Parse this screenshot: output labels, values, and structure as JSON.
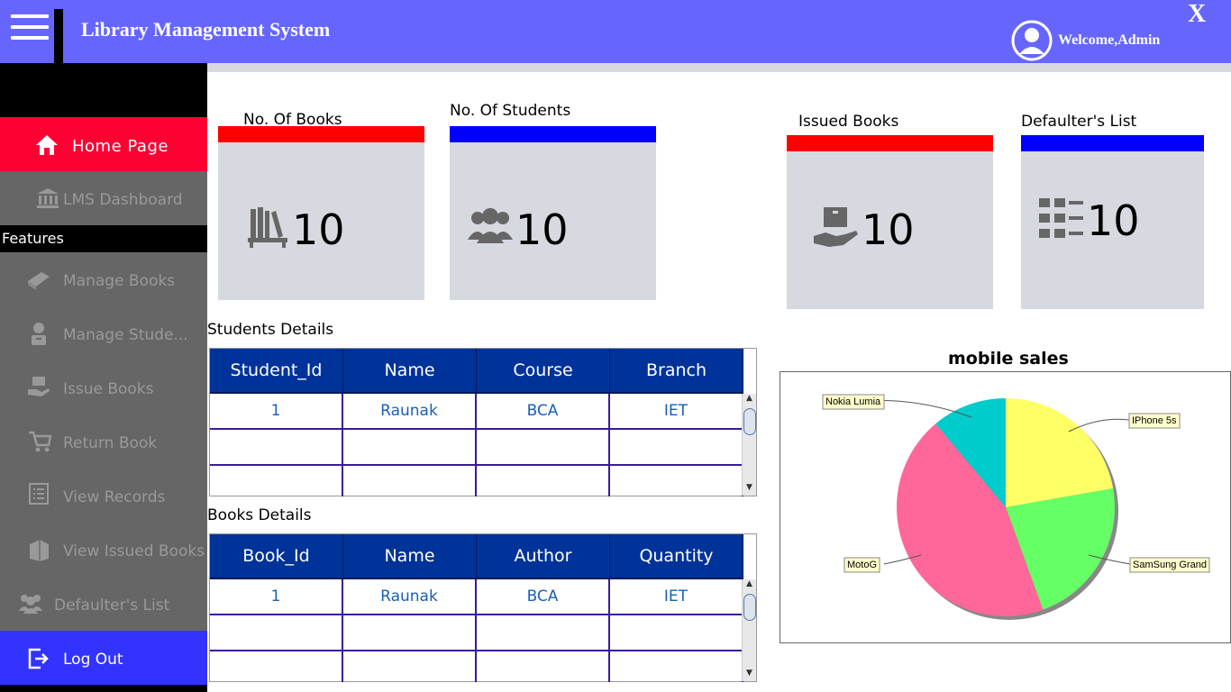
{
  "header": {
    "title": "Library Management System",
    "welcome": "Welcome,Admin",
    "close": "X",
    "bg_color": "#6666ff"
  },
  "sidebar": {
    "home": "Home  Page",
    "dashboard": "LMS Dashboard",
    "features": "Features",
    "items": [
      {
        "label": "Manage Books",
        "icon": "book-icon"
      },
      {
        "label": "Manage Stude...",
        "icon": "student-icon"
      },
      {
        "label": "Issue Books",
        "icon": "issue-books-icon"
      },
      {
        "label": "Return Book",
        "icon": "return-cart-icon"
      },
      {
        "label": "View Records",
        "icon": "list-icon"
      },
      {
        "label": "View Issued Books",
        "icon": "issued-books-icon"
      },
      {
        "label": "Defaulter's List",
        "icon": "group-icon"
      }
    ],
    "logout": "Log Out"
  },
  "cards": [
    {
      "title": "No. Of Books",
      "value": "10",
      "color": "#ff0000",
      "icon": "books-shelf-icon"
    },
    {
      "title": "No. Of Students",
      "value": "10",
      "color": "#0000ff",
      "icon": "users-icon"
    },
    {
      "title": "Issued Books",
      "value": "10",
      "color": "#ff0000",
      "icon": "hand-box-icon"
    },
    {
      "title": "Defaulter's List",
      "value": "10",
      "color": "#0000ff",
      "icon": "grid-list-icon"
    }
  ],
  "students": {
    "label": "Students Details",
    "columns": [
      "Student_Id",
      "Name",
      "Course",
      "Branch"
    ],
    "rows": [
      [
        "1",
        "Raunak",
        "BCA",
        "IET"
      ],
      [
        "",
        "",
        "",
        ""
      ],
      [
        "",
        "",
        "",
        ""
      ]
    ]
  },
  "books": {
    "label": "Books Details",
    "columns": [
      "Book_Id",
      "Name",
      "Author",
      "Quantity"
    ],
    "rows": [
      [
        "1",
        "Raunak",
        "BCA",
        "IET"
      ],
      [
        "",
        "",
        "",
        ""
      ],
      [
        "",
        "",
        "",
        ""
      ]
    ]
  },
  "chart_data": {
    "type": "pie",
    "title": "mobile sales",
    "slices": [
      {
        "label": "IPhone 5s",
        "value": 20,
        "color": "#ffff66"
      },
      {
        "label": "SamSung Grand",
        "value": 20,
        "color": "#66ff66"
      },
      {
        "label": "MotoG",
        "value": 40,
        "color": "#ff6699"
      },
      {
        "label": "Nokia Lumia",
        "value": 10,
        "color": "#00cccc"
      }
    ],
    "legend": "none"
  }
}
